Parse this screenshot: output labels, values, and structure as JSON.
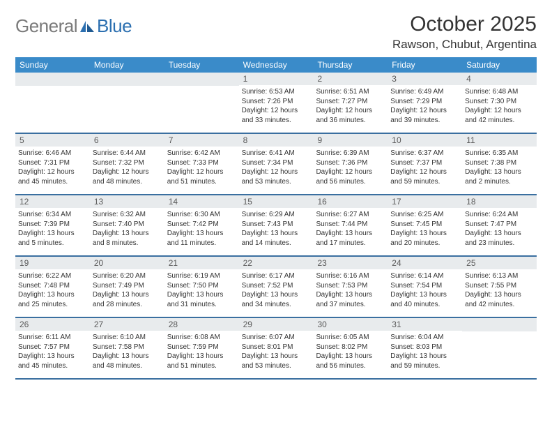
{
  "brand": {
    "name1": "General",
    "name2": "Blue"
  },
  "title": "October 2025",
  "location": "Rawson, Chubut, Argentina",
  "colors": {
    "header_bg": "#3a8bc9",
    "row_border": "#3a6fa0",
    "day_number_bg": "#e8ebed",
    "text": "#333333",
    "brand_gray": "#7a7a7a",
    "brand_blue": "#2b6fb0",
    "page_bg": "#ffffff"
  },
  "typography": {
    "title_fontsize": 30,
    "location_fontsize": 17,
    "weekday_fontsize": 12,
    "daynum_fontsize": 12,
    "info_fontsize": 10
  },
  "weekdays": [
    "Sunday",
    "Monday",
    "Tuesday",
    "Wednesday",
    "Thursday",
    "Friday",
    "Saturday"
  ],
  "weeks": [
    [
      null,
      null,
      null,
      {
        "n": "1",
        "sunrise": "6:53 AM",
        "sunset": "7:26 PM",
        "daylight": "12 hours and 33 minutes."
      },
      {
        "n": "2",
        "sunrise": "6:51 AM",
        "sunset": "7:27 PM",
        "daylight": "12 hours and 36 minutes."
      },
      {
        "n": "3",
        "sunrise": "6:49 AM",
        "sunset": "7:29 PM",
        "daylight": "12 hours and 39 minutes."
      },
      {
        "n": "4",
        "sunrise": "6:48 AM",
        "sunset": "7:30 PM",
        "daylight": "12 hours and 42 minutes."
      }
    ],
    [
      {
        "n": "5",
        "sunrise": "6:46 AM",
        "sunset": "7:31 PM",
        "daylight": "12 hours and 45 minutes."
      },
      {
        "n": "6",
        "sunrise": "6:44 AM",
        "sunset": "7:32 PM",
        "daylight": "12 hours and 48 minutes."
      },
      {
        "n": "7",
        "sunrise": "6:42 AM",
        "sunset": "7:33 PM",
        "daylight": "12 hours and 51 minutes."
      },
      {
        "n": "8",
        "sunrise": "6:41 AM",
        "sunset": "7:34 PM",
        "daylight": "12 hours and 53 minutes."
      },
      {
        "n": "9",
        "sunrise": "6:39 AM",
        "sunset": "7:36 PM",
        "daylight": "12 hours and 56 minutes."
      },
      {
        "n": "10",
        "sunrise": "6:37 AM",
        "sunset": "7:37 PM",
        "daylight": "12 hours and 59 minutes."
      },
      {
        "n": "11",
        "sunrise": "6:35 AM",
        "sunset": "7:38 PM",
        "daylight": "13 hours and 2 minutes."
      }
    ],
    [
      {
        "n": "12",
        "sunrise": "6:34 AM",
        "sunset": "7:39 PM",
        "daylight": "13 hours and 5 minutes."
      },
      {
        "n": "13",
        "sunrise": "6:32 AM",
        "sunset": "7:40 PM",
        "daylight": "13 hours and 8 minutes."
      },
      {
        "n": "14",
        "sunrise": "6:30 AM",
        "sunset": "7:42 PM",
        "daylight": "13 hours and 11 minutes."
      },
      {
        "n": "15",
        "sunrise": "6:29 AM",
        "sunset": "7:43 PM",
        "daylight": "13 hours and 14 minutes."
      },
      {
        "n": "16",
        "sunrise": "6:27 AM",
        "sunset": "7:44 PM",
        "daylight": "13 hours and 17 minutes."
      },
      {
        "n": "17",
        "sunrise": "6:25 AM",
        "sunset": "7:45 PM",
        "daylight": "13 hours and 20 minutes."
      },
      {
        "n": "18",
        "sunrise": "6:24 AM",
        "sunset": "7:47 PM",
        "daylight": "13 hours and 23 minutes."
      }
    ],
    [
      {
        "n": "19",
        "sunrise": "6:22 AM",
        "sunset": "7:48 PM",
        "daylight": "13 hours and 25 minutes."
      },
      {
        "n": "20",
        "sunrise": "6:20 AM",
        "sunset": "7:49 PM",
        "daylight": "13 hours and 28 minutes."
      },
      {
        "n": "21",
        "sunrise": "6:19 AM",
        "sunset": "7:50 PM",
        "daylight": "13 hours and 31 minutes."
      },
      {
        "n": "22",
        "sunrise": "6:17 AM",
        "sunset": "7:52 PM",
        "daylight": "13 hours and 34 minutes."
      },
      {
        "n": "23",
        "sunrise": "6:16 AM",
        "sunset": "7:53 PM",
        "daylight": "13 hours and 37 minutes."
      },
      {
        "n": "24",
        "sunrise": "6:14 AM",
        "sunset": "7:54 PM",
        "daylight": "13 hours and 40 minutes."
      },
      {
        "n": "25",
        "sunrise": "6:13 AM",
        "sunset": "7:55 PM",
        "daylight": "13 hours and 42 minutes."
      }
    ],
    [
      {
        "n": "26",
        "sunrise": "6:11 AM",
        "sunset": "7:57 PM",
        "daylight": "13 hours and 45 minutes."
      },
      {
        "n": "27",
        "sunrise": "6:10 AM",
        "sunset": "7:58 PM",
        "daylight": "13 hours and 48 minutes."
      },
      {
        "n": "28",
        "sunrise": "6:08 AM",
        "sunset": "7:59 PM",
        "daylight": "13 hours and 51 minutes."
      },
      {
        "n": "29",
        "sunrise": "6:07 AM",
        "sunset": "8:01 PM",
        "daylight": "13 hours and 53 minutes."
      },
      {
        "n": "30",
        "sunrise": "6:05 AM",
        "sunset": "8:02 PM",
        "daylight": "13 hours and 56 minutes."
      },
      {
        "n": "31",
        "sunrise": "6:04 AM",
        "sunset": "8:03 PM",
        "daylight": "13 hours and 59 minutes."
      },
      null
    ]
  ],
  "labels": {
    "sunrise": "Sunrise:",
    "sunset": "Sunset:",
    "daylight": "Daylight:"
  }
}
